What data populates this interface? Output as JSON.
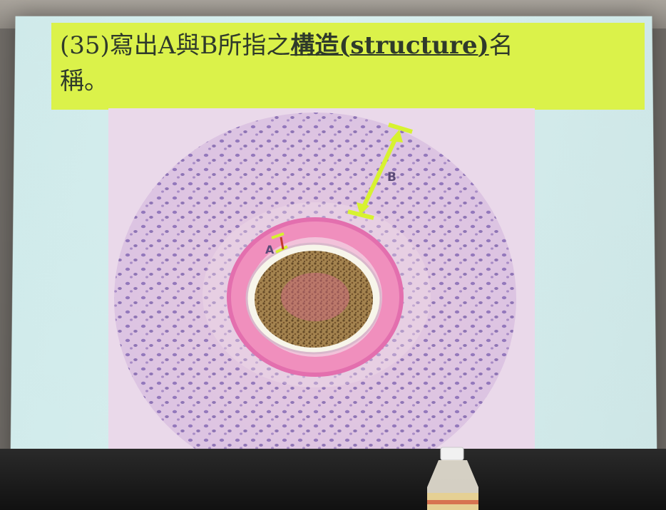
{
  "slide": {
    "title_line1_prefix": "(35)寫出A與B所指之",
    "title_line1_emph": "構造(structure)",
    "title_line1_suffix": "名",
    "title_line2": "稱。"
  },
  "labels": {
    "a": "A",
    "b": "B"
  },
  "colors": {
    "title_bar": "#dbf24a",
    "arrow": "#d7f230",
    "screen": "#d8efef"
  }
}
